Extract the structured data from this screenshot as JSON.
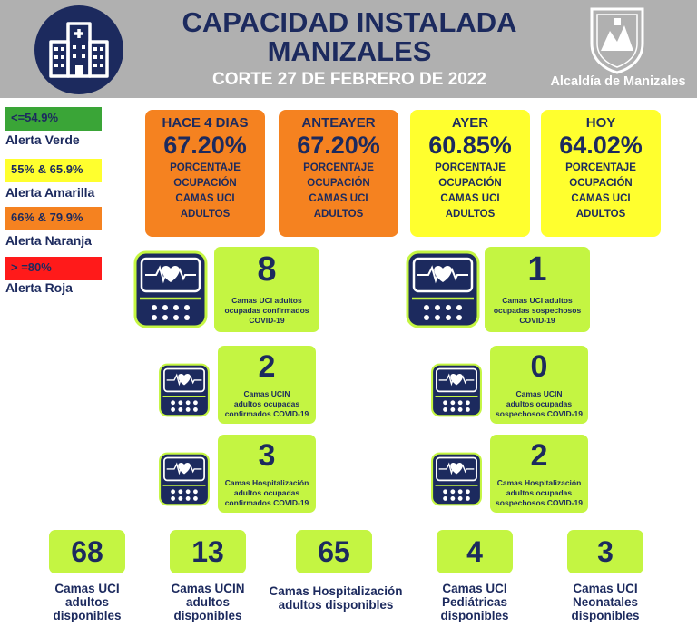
{
  "header": {
    "title_line1": "CAPACIDAD INSTALADA",
    "title_line2": "MANIZALES",
    "subtitle": "CORTE 27 DE FEBRERO DE 2022",
    "org": "Alcaldía de Manizales"
  },
  "legend": [
    {
      "range": "<=54.9%",
      "label": "Alerta Verde",
      "color": "#3aa537"
    },
    {
      "range": "55% & 65.9%",
      "label": "Alerta Amarilla",
      "color": "#ffff2e"
    },
    {
      "range": "66% & 79.9%",
      "label": "Alerta Naranja",
      "color": "#f58220"
    },
    {
      "range": "> =80%",
      "label": "Alerta Roja",
      "color": "#ff1a1a"
    }
  ],
  "occupancy": [
    {
      "label": "HACE 4 DIAS",
      "value": "67.20%",
      "desc1": "PORCENTAJE",
      "desc2": "OCUPACIÓN",
      "desc3": "CAMAS UCI",
      "desc4": "ADULTOS"
    },
    {
      "label": "ANTEAYER",
      "value": "67.20%",
      "desc1": "PORCENTAJE",
      "desc2": "OCUPACIÓN",
      "desc3": "CAMAS UCI",
      "desc4": "ADULTOS"
    },
    {
      "label": "AYER",
      "value": "60.85%",
      "desc1": "PORCENTAJE",
      "desc2": "OCUPACIÓN",
      "desc3": "CAMAS UCI",
      "desc4": "ADULTOS"
    },
    {
      "label": "HOY",
      "value": "64.02%",
      "desc1": "PORCENTAJE",
      "desc2": "OCUPACIÓN",
      "desc3": "CAMAS UCI",
      "desc4": "ADULTOS"
    }
  ],
  "stats": {
    "uci_conf": {
      "num": "8",
      "l1": "Camas UCI adultos",
      "l2": "ocupadas confirmados",
      "l3": "COVID-19"
    },
    "uci_sosp": {
      "num": "1",
      "l1": "Camas UCI adultos",
      "l2": "ocupadas sospechosos",
      "l3": "COVID-19"
    },
    "ucin_conf": {
      "num": "2",
      "l1": "Camas  UCIN",
      "l2": "adultos ocupadas",
      "l3": "confirmados COVID-19"
    },
    "ucin_sosp": {
      "num": "0",
      "l1": "Camas  UCIN",
      "l2": "adultos ocupadas",
      "l3": "sospechosos COVID-19"
    },
    "hosp_conf": {
      "num": "3",
      "l1": "Camas  Hospitalización",
      "l2": "adultos ocupadas",
      "l3": "confirmados COVID-19"
    },
    "hosp_sosp": {
      "num": "2",
      "l1": "Camas  Hospitalización",
      "l2": "adultos ocupadas",
      "l3": "sospechosos COVID-19"
    }
  },
  "available": [
    {
      "num": "68",
      "l1": "Camas UCI",
      "l2": "adultos",
      "l3": "disponibles"
    },
    {
      "num": "13",
      "l1": "Camas UCIN",
      "l2": "adultos",
      "l3": "disponibles"
    },
    {
      "num": "65",
      "l1": "Camas  Hospitalización",
      "l2": "adultos disponibles",
      "l3": ""
    },
    {
      "num": "4",
      "l1": "Camas  UCI",
      "l2": "Pediátricas",
      "l3": "disponibles"
    },
    {
      "num": "3",
      "l1": "Camas  UCI",
      "l2": "Neonatales",
      "l3": "disponibles"
    }
  ]
}
